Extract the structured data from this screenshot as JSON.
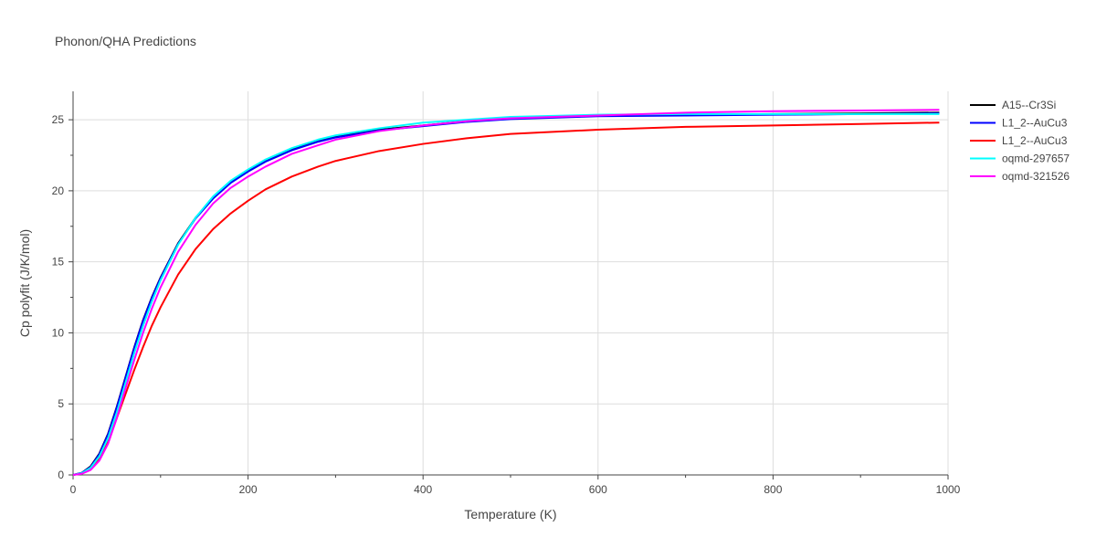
{
  "chart_data": {
    "type": "line",
    "title": "Phonon/QHA Predictions",
    "xlabel": "Temperature (K)",
    "ylabel": "Cp polyfit (J/K/mol)",
    "xlim": [
      0,
      1000
    ],
    "ylim": [
      0,
      27
    ],
    "xticks": [
      0,
      200,
      400,
      600,
      800,
      1000
    ],
    "yticks": [
      0,
      5,
      10,
      15,
      20,
      25
    ],
    "grid": true,
    "legend_position": "top-right",
    "series": [
      {
        "name": "A15--Cr3Si",
        "color": "#000000",
        "x": [
          0,
          10,
          20,
          30,
          40,
          50,
          60,
          70,
          80,
          90,
          100,
          120,
          140,
          160,
          180,
          200,
          220,
          250,
          280,
          300,
          350,
          400,
          450,
          500,
          600,
          700,
          800,
          900,
          990
        ],
        "y": [
          0,
          0.15,
          0.6,
          1.5,
          2.9,
          4.8,
          6.9,
          9.0,
          10.9,
          12.5,
          13.9,
          16.3,
          18.1,
          19.5,
          20.6,
          21.4,
          22.1,
          22.9,
          23.5,
          23.8,
          24.3,
          24.6,
          24.9,
          25.1,
          25.3,
          25.35,
          25.4,
          25.45,
          25.5
        ]
      },
      {
        "name": "L1_2--AuCu3",
        "color": "#0000ff",
        "x": [
          0,
          10,
          20,
          30,
          40,
          50,
          60,
          70,
          80,
          90,
          100,
          120,
          140,
          160,
          180,
          200,
          220,
          250,
          280,
          300,
          350,
          400,
          450,
          500,
          600,
          700,
          800,
          900,
          990
        ],
        "y": [
          0,
          0.15,
          0.55,
          1.45,
          2.85,
          4.75,
          6.85,
          8.95,
          10.85,
          12.45,
          13.85,
          16.25,
          18.05,
          19.45,
          20.55,
          21.35,
          22.05,
          22.85,
          23.45,
          23.75,
          24.25,
          24.55,
          24.85,
          25.05,
          25.25,
          25.3,
          25.35,
          25.4,
          25.45
        ]
      },
      {
        "name": "L1_2--AuCu3",
        "color": "#ff0000",
        "x": [
          0,
          10,
          20,
          30,
          40,
          50,
          60,
          70,
          80,
          90,
          100,
          120,
          140,
          160,
          180,
          200,
          220,
          250,
          280,
          300,
          350,
          400,
          450,
          500,
          600,
          700,
          800,
          900,
          990
        ],
        "y": [
          0,
          0.1,
          0.4,
          1.1,
          2.4,
          4.0,
          5.7,
          7.4,
          9.0,
          10.5,
          11.8,
          14.1,
          15.9,
          17.3,
          18.4,
          19.3,
          20.1,
          21.0,
          21.7,
          22.1,
          22.8,
          23.3,
          23.7,
          24.0,
          24.3,
          24.5,
          24.6,
          24.7,
          24.8
        ]
      },
      {
        "name": "oqmd-297657",
        "color": "#00ffff",
        "x": [
          0,
          10,
          20,
          30,
          40,
          50,
          60,
          70,
          80,
          90,
          100,
          120,
          140,
          160,
          180,
          200,
          220,
          250,
          280,
          300,
          350,
          400,
          450,
          500,
          600,
          700,
          800,
          900,
          990
        ],
        "y": [
          0,
          0.12,
          0.5,
          1.3,
          2.6,
          4.4,
          6.5,
          8.6,
          10.5,
          12.2,
          13.7,
          16.2,
          18.1,
          19.6,
          20.7,
          21.5,
          22.2,
          23.0,
          23.6,
          23.9,
          24.4,
          24.8,
          25.0,
          25.2,
          25.35,
          25.4,
          25.4,
          25.4,
          25.4
        ]
      },
      {
        "name": "oqmd-321526",
        "color": "#ff00ff",
        "x": [
          0,
          10,
          20,
          30,
          40,
          50,
          60,
          70,
          80,
          90,
          100,
          120,
          140,
          160,
          180,
          200,
          220,
          250,
          280,
          300,
          350,
          400,
          450,
          500,
          600,
          700,
          800,
          900,
          990
        ],
        "y": [
          0,
          0.08,
          0.35,
          1.0,
          2.2,
          4.0,
          6.1,
          8.1,
          10.0,
          11.7,
          13.2,
          15.7,
          17.6,
          19.1,
          20.2,
          21.0,
          21.7,
          22.6,
          23.2,
          23.6,
          24.2,
          24.6,
          24.9,
          25.1,
          25.3,
          25.5,
          25.6,
          25.65,
          25.7
        ]
      }
    ]
  }
}
